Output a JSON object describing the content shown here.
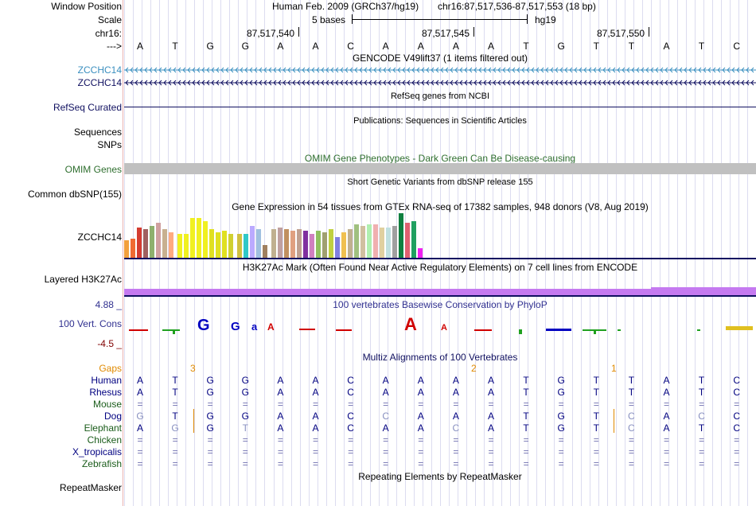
{
  "header": {
    "window_position_label": "Window Position",
    "scale_label": "Scale",
    "chrom_label": "chr16:",
    "arrow_label": "--->",
    "assembly_text": "Human Feb. 2009 (GRCh37/hg19)",
    "position_text": "chr16:87,517,536-87,517,553 (18 bp)",
    "scale_text": "5 bases",
    "scale_db": "hg19",
    "coords": [
      "87,517,540",
      "87,517,545",
      "87,517,550"
    ]
  },
  "sequence": [
    "A",
    "T",
    "G",
    "G",
    "A",
    "A",
    "C",
    "A",
    "A",
    "A",
    "A",
    "T",
    "G",
    "T",
    "T",
    "A",
    "T",
    "C"
  ],
  "tracks": {
    "gencode": {
      "title": "GENCODE V49lift37 (1 items filtered out)",
      "items": [
        "ZCCHC14",
        "ZCCHC14"
      ]
    },
    "refseq": {
      "title": "RefSeq genes from NCBI",
      "label": "RefSeq Curated"
    },
    "publications": {
      "title": "Publications: Sequences in Scientific Articles",
      "labels": [
        "Sequences",
        "SNPs"
      ]
    },
    "omim": {
      "title": "OMIM Gene Phenotypes - Dark Green Can Be Disease-causing",
      "label": "OMIM Genes",
      "color": "#2f6f2f"
    },
    "dbsnp": {
      "title": "Short Genetic Variants from dbSNP release 155",
      "label": "Common dbSNP(155)"
    },
    "gtex": {
      "title": "Gene Expression in 54 tissues from GTEx RNA-seq of 17382 samples, 948 donors (V8, Aug 2019)",
      "label": "ZCCHC14"
    },
    "h3k27ac": {
      "title": "H3K27Ac Mark (Often Found Near Active Regulatory Elements) on 7 cell lines from ENCODE",
      "label": "Layered H3K27Ac",
      "color": "#c57af0"
    },
    "conservation": {
      "title": "100 vertebrates Basewise Conservation by PhyloP",
      "label": "100 Vert. Cons",
      "max_label": "4.88 _",
      "min_label": "-4.5 _"
    },
    "multiz": {
      "title": "Multiz Alignments of 100 Vertebrates",
      "gaps_label": "Gaps",
      "gap_counts": [
        "3",
        "2",
        "1"
      ],
      "species": [
        {
          "name": "Human",
          "color": "#000080",
          "row": [
            "A",
            "T",
            "G",
            "G",
            "A",
            "A",
            "C",
            "A",
            "A",
            "A",
            "A",
            "T",
            "G",
            "T",
            "T",
            "A",
            "T",
            "C"
          ]
        },
        {
          "name": "Rhesus",
          "color": "#000080",
          "row": [
            "A",
            "T",
            "G",
            "G",
            "A",
            "A",
            "C",
            "A",
            "A",
            "A",
            "A",
            "T",
            "G",
            "T",
            "T",
            "A",
            "T",
            "C"
          ]
        },
        {
          "name": "Mouse",
          "color": "#1a5c1a",
          "row": [
            "=",
            "=",
            "=",
            "=",
            "=",
            "=",
            "=",
            "=",
            "=",
            "=",
            "=",
            "=",
            "=",
            "=",
            "=",
            "=",
            "=",
            "="
          ]
        },
        {
          "name": "Dog",
          "color": "#000080",
          "row": [
            "G",
            "T",
            "G",
            "G",
            "A",
            "A",
            "C",
            "C",
            "A",
            "A",
            "A",
            "T",
            "G",
            "T",
            "C",
            "A",
            "C",
            "C"
          ]
        },
        {
          "name": "Elephant",
          "color": "#1a5c1a",
          "row": [
            "A",
            "G",
            "G",
            "T",
            "A",
            "A",
            "C",
            "A",
            "A",
            "C",
            "A",
            "T",
            "G",
            "T",
            "C",
            "A",
            "T",
            "C"
          ]
        },
        {
          "name": "Chicken",
          "color": "#1a5c1a",
          "row": [
            "=",
            "=",
            "=",
            "=",
            "=",
            "=",
            "=",
            "=",
            "=",
            "=",
            "=",
            "=",
            "=",
            "=",
            "=",
            "=",
            "=",
            "="
          ]
        },
        {
          "name": "X_tropicalis",
          "color": "#000080",
          "row": [
            "=",
            "=",
            "=",
            "=",
            "=",
            "=",
            "=",
            "=",
            "=",
            "=",
            "=",
            "=",
            "=",
            "=",
            "=",
            "=",
            "=",
            "="
          ]
        },
        {
          "name": "Zebrafish",
          "color": "#1a5c1a",
          "row": [
            "=",
            "=",
            "=",
            "=",
            "=",
            "=",
            "=",
            "=",
            "=",
            "=",
            "=",
            "=",
            "=",
            "=",
            "=",
            "=",
            "=",
            "="
          ]
        }
      ]
    },
    "repeatmasker": {
      "title": "Repeating Elements by RepeatMasker",
      "label": "RepeatMasker"
    }
  }
}
